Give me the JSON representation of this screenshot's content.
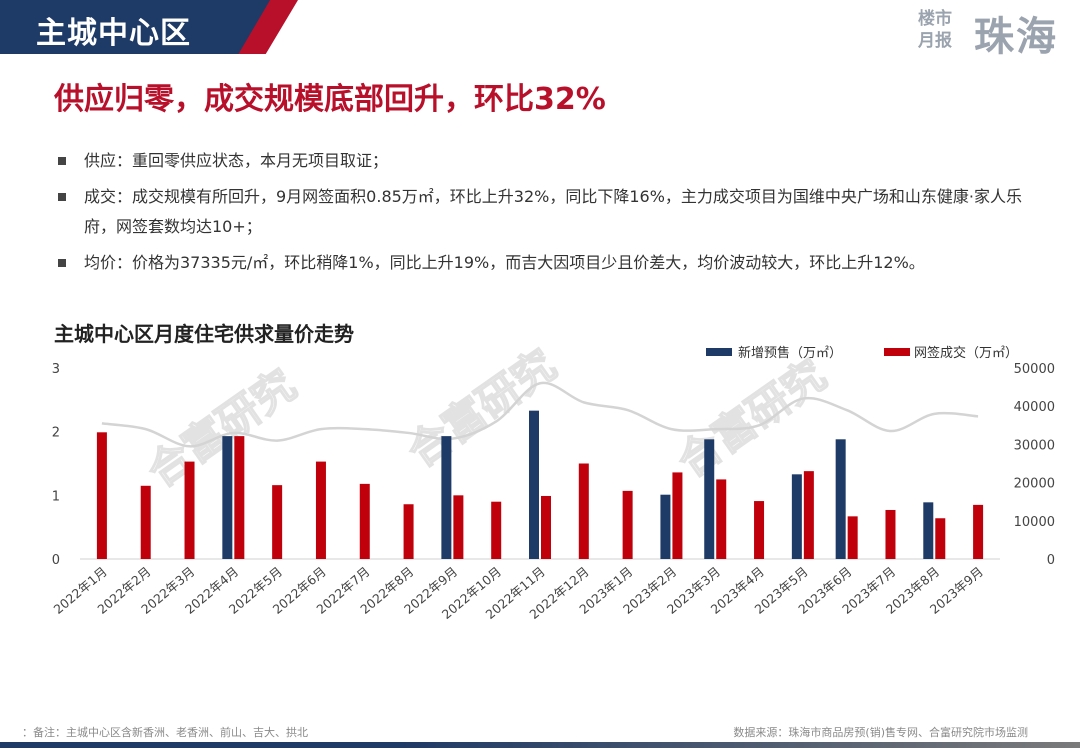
{
  "header": {
    "section_title": "主城中心区",
    "brand_small": "楼市月报",
    "brand_big": "珠海"
  },
  "headline": "供应归零，成交规模底部回升，环比32%",
  "bullets": [
    "供应：重回零供应状态，本月无项目取证；",
    "成交：成交规模有所回升，9月网签面积0.85万㎡，环比上升32%，同比下降16%，主力成交项目为国维中央广场和山东健康·家人乐府，网签套数均达10+；",
    "均价：价格为37335元/㎡，环比稍降1%，同比上升19%，而吉大因项目少且价差大，均价波动较大，环比上升12%。"
  ],
  "chart_title": "主城中心区月度住宅供求量价走势",
  "watermark": "合富研究",
  "footer": {
    "note": "：备注：主城中心区含新香洲、老香洲、前山、吉大、拱北",
    "source": "数据来源：珠海市商品房预(销)售专网、合富研究院市场监测"
  },
  "colors": {
    "supply": "#1e3a66",
    "deals": "#c0000b",
    "price": "#d4d4d4",
    "accent": "#b8102a"
  },
  "chart_data": {
    "type": "bar",
    "categories": [
      "2022年1月",
      "2022年2月",
      "2022年3月",
      "2022年4月",
      "2022年5月",
      "2022年6月",
      "2022年7月",
      "2022年8月",
      "2022年9月",
      "2022年10月",
      "2022年11月",
      "2022年12月",
      "2023年1月",
      "2023年2月",
      "2023年3月",
      "2023年4月",
      "2023年5月",
      "2023年6月",
      "2023年7月",
      "2023年8月",
      "2023年9月"
    ],
    "series": [
      {
        "name": "新增预售（万㎡）",
        "axis": "left",
        "type": "bar",
        "values": [
          0,
          0,
          0,
          1.93,
          0,
          0,
          0,
          0,
          1.93,
          0,
          2.33,
          0,
          0,
          1.01,
          1.88,
          0,
          1.33,
          1.88,
          0,
          0.89,
          0
        ]
      },
      {
        "name": "网签成交（万㎡）",
        "axis": "left",
        "type": "bar",
        "values": [
          1.99,
          1.15,
          1.53,
          1.93,
          1.16,
          1.53,
          1.18,
          0.86,
          1.0,
          0.9,
          0.99,
          1.5,
          1.07,
          1.36,
          1.25,
          0.91,
          1.38,
          0.67,
          0.77,
          0.64,
          0.85
        ]
      },
      {
        "type": "line",
        "axis": "right",
        "values": [
          35500,
          34000,
          29500,
          33000,
          31000,
          34000,
          34000,
          33000,
          31500,
          36000,
          46000,
          41000,
          39000,
          34000,
          34000,
          35000,
          42000,
          39000,
          33500,
          38000,
          37335
        ]
      }
    ],
    "ylim_left": [
      0,
      3
    ],
    "yticks_left": [
      0,
      1,
      2,
      3
    ],
    "ylim_right": [
      0,
      50000
    ],
    "yticks_right": [
      0,
      10000,
      20000,
      30000,
      40000,
      50000
    ],
    "legend": "top-right"
  }
}
